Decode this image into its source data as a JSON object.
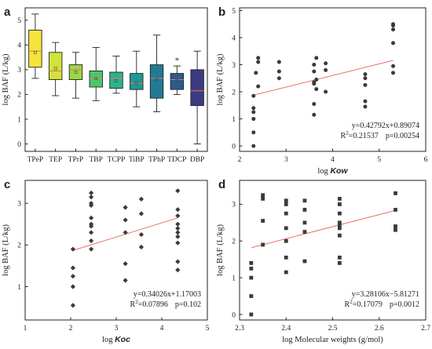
{
  "colors": {
    "axis": "#222222",
    "point": "#3a3a3a",
    "fit": "#e8726a",
    "box": [
      "#f6e33a",
      "#cfe33a",
      "#9ad842",
      "#4cc66a",
      "#2cb38c",
      "#1f9894",
      "#227a94",
      "#2a5c8d",
      "#3b3b83",
      "#4a1f6b"
    ]
  },
  "chart_data": [
    {
      "panel": "a",
      "type": "box",
      "ylabel": "log BAF (L/kg)",
      "categories": [
        "TPeP",
        "TEP",
        "TPrP",
        "TBP",
        "TCPP",
        "TiBP",
        "TPhP",
        "TDCP",
        "DBP"
      ],
      "ylim": [
        -0.3,
        5.5
      ],
      "yticks": [
        0,
        1,
        2,
        3,
        4,
        5
      ],
      "boxes": [
        {
          "min": 2.65,
          "q1": 3.1,
          "median": 3.75,
          "q3": 4.6,
          "max": 5.25,
          "mean": 3.7
        },
        {
          "min": 1.95,
          "q1": 2.6,
          "median": 2.95,
          "q3": 3.7,
          "max": 4.1,
          "mean": 3.05
        },
        {
          "min": 1.85,
          "q1": 2.6,
          "median": 3.0,
          "q3": 3.2,
          "max": 3.7,
          "mean": 2.9
        },
        {
          "min": 1.75,
          "q1": 2.3,
          "median": 2.65,
          "q3": 2.95,
          "max": 3.9,
          "mean": 2.65
        },
        {
          "min": 2.05,
          "q1": 2.25,
          "median": 2.65,
          "q3": 2.9,
          "max": 3.55,
          "mean": 2.55
        },
        {
          "min": 1.5,
          "q1": 2.2,
          "median": 2.45,
          "q3": 2.85,
          "max": 3.75,
          "mean": 2.45
        },
        {
          "min": 1.3,
          "q1": 1.85,
          "median": 2.65,
          "q3": 3.2,
          "max": 4.4,
          "mean": 2.6
        },
        {
          "min": 2.0,
          "q1": 2.2,
          "median": 2.6,
          "q3": 2.85,
          "max": 3.15,
          "mean": 2.55,
          "outliers": [
            3.4
          ]
        },
        {
          "min": 0.0,
          "q1": 1.55,
          "median": 2.15,
          "q3": 3.0,
          "max": 3.75,
          "mean": 2.3
        }
      ]
    },
    {
      "panel": "b",
      "type": "scatter",
      "marker": "circle",
      "xlabel_prefix": "log ",
      "xlabel_var": "Kow",
      "ylabel": "log BAF (L/kg)",
      "xlim": [
        2,
        6
      ],
      "ylim": [
        -0.2,
        5.1
      ],
      "xticks": [
        2,
        3,
        4,
        5,
        6
      ],
      "yticks": [
        0,
        1,
        2,
        3,
        4,
        5
      ],
      "x": [
        2.3,
        2.3,
        2.3,
        2.3,
        2.3,
        2.3,
        2.35,
        2.4,
        2.4,
        2.4,
        2.85,
        2.85,
        2.85,
        3.6,
        3.6,
        3.6,
        3.6,
        3.6,
        3.6,
        3.65,
        3.65,
        3.65,
        3.85,
        3.85,
        3.85,
        4.7,
        4.7,
        4.7,
        4.7,
        4.7,
        5.3,
        5.3,
        5.3,
        5.3,
        5.3,
        5.3
      ],
      "y": [
        0.0,
        0.5,
        1.0,
        1.25,
        1.4,
        1.85,
        2.7,
        2.2,
        3.1,
        3.25,
        2.5,
        2.75,
        3.1,
        1.15,
        1.55,
        2.3,
        2.35,
        2.75,
        3.0,
        2.1,
        2.45,
        3.25,
        2.0,
        2.8,
        3.05,
        1.45,
        1.65,
        2.25,
        2.5,
        2.65,
        2.7,
        2.95,
        3.8,
        4.3,
        4.45,
        4.5
      ],
      "fit": {
        "slope": 0.42792,
        "intercept": 0.89074,
        "xrange": [
          2.3,
          5.3
        ]
      },
      "annotations": {
        "eq": "y=0.42792x+0.89074",
        "r2_label": "R",
        "r2_value": "=0.21537",
        "p": "p=0.00254"
      }
    },
    {
      "panel": "c",
      "type": "scatter",
      "marker": "diamond",
      "xlabel_prefix": "log ",
      "xlabel_var": "Koc",
      "ylabel": "log BAF (L/kg)",
      "xlim": [
        1,
        5
      ],
      "ylim": [
        0.2,
        3.55
      ],
      "xticks": [
        1,
        2,
        3,
        4,
        5
      ],
      "yticks": [
        1,
        2,
        3
      ],
      "x": [
        2.05,
        2.05,
        2.05,
        2.05,
        2.05,
        2.45,
        2.45,
        2.45,
        2.45,
        2.45,
        2.45,
        2.45,
        2.45,
        2.45,
        2.45,
        3.2,
        3.2,
        3.2,
        3.2,
        3.2,
        3.55,
        3.55,
        3.55,
        3.55,
        4.35,
        4.35,
        4.35,
        4.35,
        4.35,
        4.35,
        4.35,
        4.35,
        4.35,
        4.35
      ],
      "y": [
        0.55,
        1.0,
        1.25,
        1.45,
        1.9,
        1.9,
        2.1,
        2.3,
        2.45,
        2.5,
        2.65,
        2.95,
        3.0,
        3.15,
        3.25,
        1.15,
        1.55,
        2.3,
        2.6,
        2.9,
        1.95,
        2.25,
        2.75,
        3.1,
        1.4,
        1.6,
        2.05,
        2.2,
        2.3,
        2.4,
        2.5,
        2.7,
        2.85,
        3.3
      ],
      "fit": {
        "slope": 0.34026,
        "intercept": 1.17003,
        "xrange": [
          2.05,
          4.35
        ]
      },
      "annotations": {
        "eq": "y=0.34026x+1.17003",
        "r2_label": "R",
        "r2_value": "=0.07896",
        "p": "p=0.102"
      }
    },
    {
      "panel": "d",
      "type": "scatter",
      "marker": "square",
      "xlabel": "log Molecular weights (g/mol)",
      "ylabel": "log BAF (L/kg)",
      "xlim": [
        2.3,
        2.7
      ],
      "ylim": [
        -0.15,
        3.65
      ],
      "xticks": [
        2.3,
        2.4,
        2.5,
        2.6,
        2.7
      ],
      "yticks": [
        0,
        1,
        2,
        3
      ],
      "x": [
        2.325,
        2.325,
        2.325,
        2.325,
        2.325,
        2.35,
        2.35,
        2.35,
        2.35,
        2.4,
        2.4,
        2.4,
        2.4,
        2.4,
        2.4,
        2.4,
        2.44,
        2.44,
        2.44,
        2.44,
        2.44,
        2.515,
        2.515,
        2.515,
        2.515,
        2.515,
        2.515,
        2.515,
        2.515,
        2.515,
        2.635,
        2.635,
        2.635,
        2.635
      ],
      "y": [
        0.0,
        0.5,
        1.0,
        1.25,
        1.4,
        1.9,
        2.55,
        3.15,
        3.25,
        1.15,
        1.55,
        2.0,
        2.35,
        2.75,
        3.0,
        3.1,
        1.45,
        2.25,
        2.5,
        2.85,
        3.1,
        1.4,
        1.55,
        2.15,
        2.35,
        2.45,
        2.5,
        2.75,
        3.0,
        3.15,
        2.3,
        2.4,
        2.85,
        3.3
      ],
      "fit": {
        "slope": 3.28106,
        "intercept": -5.81271,
        "xrange": [
          2.325,
          2.635
        ]
      },
      "annotations": {
        "eq": "y=3.28106x−5.81271",
        "r2_label": "R",
        "r2_value": "=0.17079",
        "p": "p=0.0012"
      }
    }
  ]
}
